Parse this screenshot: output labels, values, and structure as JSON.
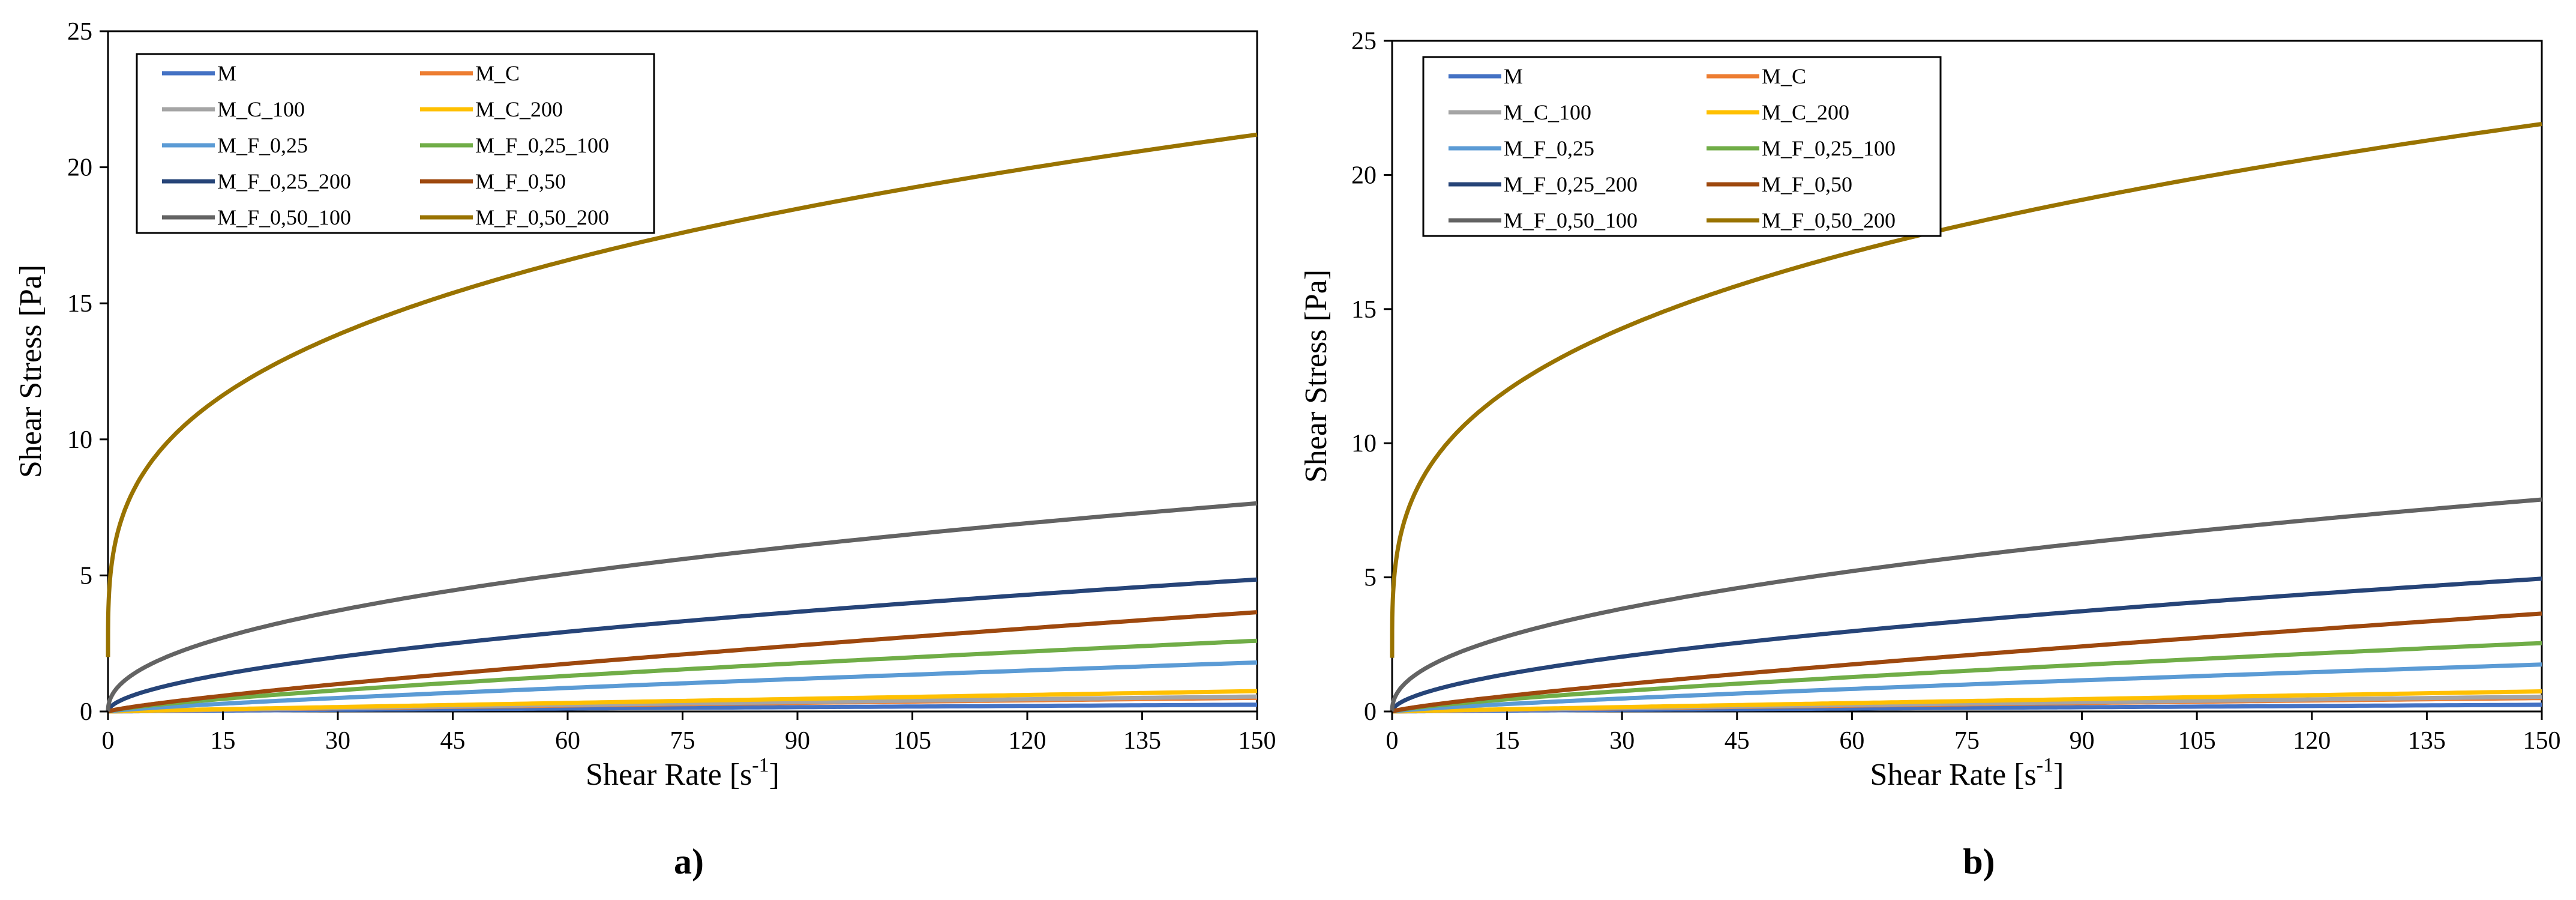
{
  "chart_data": [
    {
      "type": "line",
      "panel_label": "a)",
      "xlabel_prefix": "Shear Rate [s",
      "xlabel_sup": "-1",
      "xlabel_suffix": "]",
      "ylabel": "Shear Stress [Pa]",
      "xlim": [
        0,
        150
      ],
      "ylim": [
        0,
        25
      ],
      "xticks": [
        0,
        15,
        30,
        45,
        60,
        75,
        90,
        105,
        120,
        135,
        150
      ],
      "yticks": [
        0,
        5,
        10,
        15,
        20,
        25
      ],
      "grid": false,
      "legend_position": "top-left",
      "series": [
        {
          "name": "M",
          "color": "#4472C4",
          "end": 0.25,
          "n": 0.9
        },
        {
          "name": "M_C",
          "color": "#ED7D31",
          "end": 0.5,
          "n": 0.9
        },
        {
          "name": "M_C_100",
          "color": "#A5A5A5",
          "end": 0.55,
          "n": 0.9
        },
        {
          "name": "M_C_200",
          "color": "#FFC000",
          "end": 0.75,
          "n": 0.95
        },
        {
          "name": "M_F_0,25",
          "color": "#5B9BD5",
          "end": 1.8,
          "n": 0.8
        },
        {
          "name": "M_F_0,25_100",
          "color": "#70AD47",
          "end": 2.6,
          "n": 0.75
        },
        {
          "name": "M_F_0,25_200",
          "color": "#264478",
          "end": 4.85,
          "n": 0.55
        },
        {
          "name": "M_F_0,50",
          "color": "#9E480E",
          "end": 3.65,
          "n": 0.8
        },
        {
          "name": "M_F_0,50_100",
          "color": "#636363",
          "end": 7.65,
          "n": 0.45
        },
        {
          "name": "M_F_0,50_200",
          "color": "#997300",
          "end": 21.2,
          "n": 0.3,
          "y0": 2.0
        }
      ]
    },
    {
      "type": "line",
      "panel_label": "b)",
      "xlabel_prefix": "Shear Rate [s",
      "xlabel_sup": "-1",
      "xlabel_suffix": "]",
      "ylabel": "Shear Stress [Pa]",
      "xlim": [
        0,
        150
      ],
      "ylim": [
        0,
        25
      ],
      "xticks": [
        0,
        15,
        30,
        45,
        60,
        75,
        90,
        105,
        120,
        135,
        150
      ],
      "yticks": [
        0,
        5,
        10,
        15,
        20,
        25
      ],
      "grid": false,
      "legend_position": "top-left",
      "series": [
        {
          "name": "M",
          "color": "#4472C4",
          "end": 0.25,
          "n": 0.9
        },
        {
          "name": "M_C",
          "color": "#ED7D31",
          "end": 0.5,
          "n": 0.9
        },
        {
          "name": "M_C_100",
          "color": "#A5A5A5",
          "end": 0.55,
          "n": 0.9
        },
        {
          "name": "M_C_200",
          "color": "#FFC000",
          "end": 0.75,
          "n": 0.95
        },
        {
          "name": "M_F_0,25",
          "color": "#5B9BD5",
          "end": 1.75,
          "n": 0.8
        },
        {
          "name": "M_F_0,25_100",
          "color": "#70AD47",
          "end": 2.55,
          "n": 0.75
        },
        {
          "name": "M_F_0,25_200",
          "color": "#264478",
          "end": 4.95,
          "n": 0.55
        },
        {
          "name": "M_F_0,50",
          "color": "#9E480E",
          "end": 3.65,
          "n": 0.8
        },
        {
          "name": "M_F_0,50_100",
          "color": "#636363",
          "end": 7.9,
          "n": 0.45
        },
        {
          "name": "M_F_0,50_200",
          "color": "#997300",
          "end": 21.9,
          "n": 0.3,
          "y0": 2.0
        }
      ]
    }
  ]
}
